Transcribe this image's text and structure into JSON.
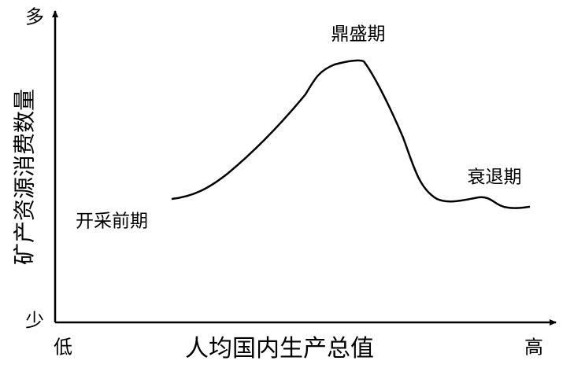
{
  "axes": {
    "y_label": "矿产资源消费数量",
    "y_top": "多",
    "y_bottom": "少",
    "x_label": "人均国内生产总值",
    "x_left": "低",
    "x_right": "高"
  },
  "stages": [
    "开采前期",
    "鼎盛期",
    "衰退期"
  ]
}
